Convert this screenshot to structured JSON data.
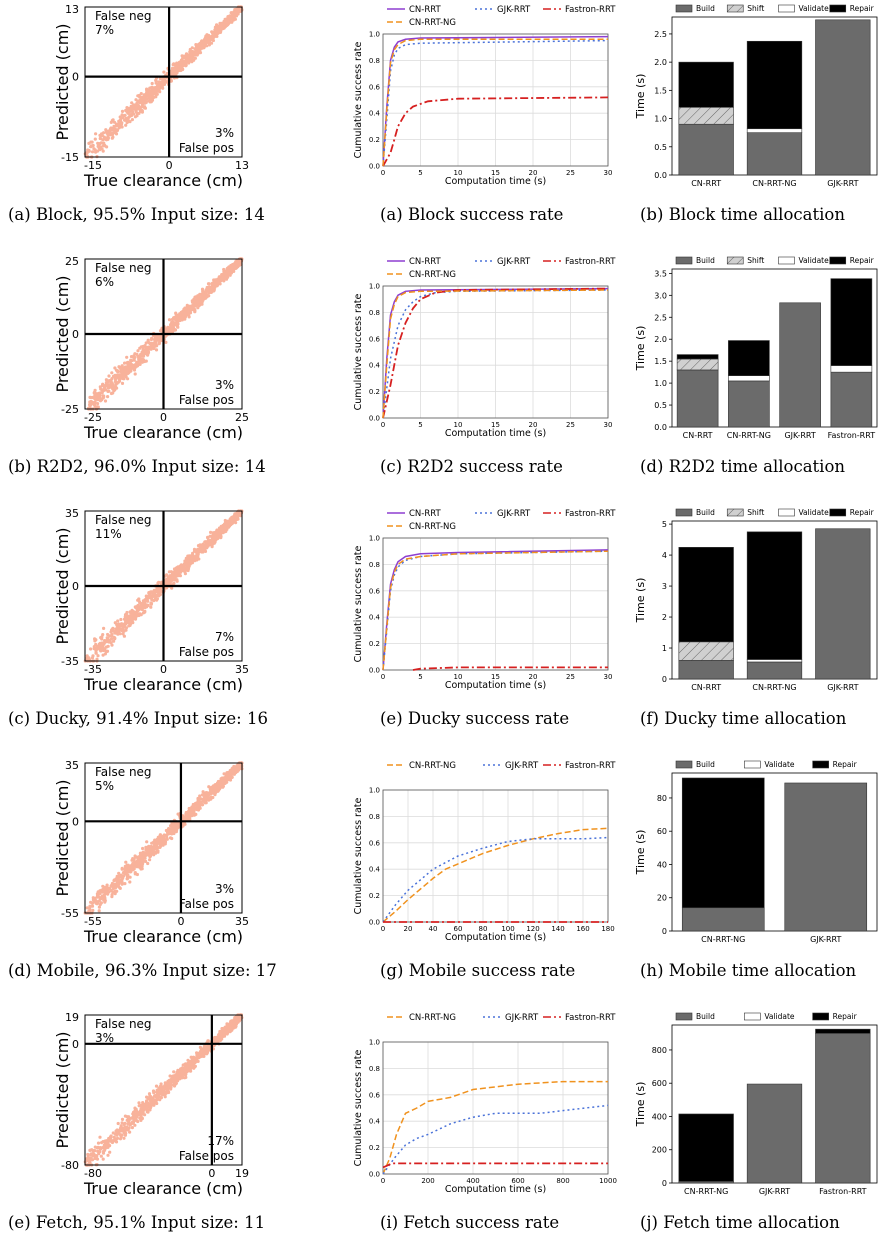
{
  "rows": [
    {
      "scatter": {
        "corner_max": "13",
        "corner_min": "-15",
        "x_max": "13",
        "x_min": "-15",
        "false_neg": "False neg",
        "false_neg_pct": "7%",
        "false_pos": "False pos",
        "false_pos_pct": "3%",
        "ylabel": "Predicted (cm)",
        "xlabel": "True clearance (cm)",
        "caption_letter": "(a)",
        "caption_text": "Block, 95.5% Input size: 14"
      },
      "success": {
        "caption_letter": "(a)",
        "caption_text": "Block success rate"
      },
      "time": {
        "caption_letter": "(b)",
        "caption_text": "Block time allocation"
      }
    },
    {
      "scatter": {
        "corner_max": "25",
        "corner_min": "-25",
        "x_max": "25",
        "x_min": "-25",
        "false_neg": "False neg",
        "false_neg_pct": "6%",
        "false_pos": "False pos",
        "false_pos_pct": "3%",
        "ylabel": "Predicted (cm)",
        "xlabel": "True clearance (cm)",
        "caption_letter": "(b)",
        "caption_text": "R2D2, 96.0% Input size: 14"
      },
      "success": {
        "caption_letter": "(c)",
        "caption_text": "R2D2 success rate"
      },
      "time": {
        "caption_letter": "(d)",
        "caption_text": "R2D2 time allocation"
      }
    },
    {
      "scatter": {
        "corner_max": "35",
        "corner_min": "-35",
        "x_max": "35",
        "x_min": "-35",
        "false_neg": "False neg",
        "false_neg_pct": "11%",
        "false_pos": "False pos",
        "false_pos_pct": "7%",
        "ylabel": "Predicted (cm)",
        "xlabel": "True clearance (cm)",
        "caption_letter": "(c)",
        "caption_text": "Ducky, 91.4% Input size: 16"
      },
      "success": {
        "caption_letter": "(e)",
        "caption_text": "Ducky success rate"
      },
      "time": {
        "caption_letter": "(f)",
        "caption_text": "Ducky time allocation"
      }
    },
    {
      "scatter": {
        "corner_max": "35",
        "corner_min": "-55",
        "x_max": "35",
        "x_min": "-55",
        "false_neg": "False neg",
        "false_neg_pct": "5%",
        "false_pos": "False pos",
        "false_pos_pct": "3%",
        "ylabel": "Predicted (cm)",
        "xlabel": "True clearance (cm)",
        "caption_letter": "(d)",
        "caption_text": "Mobile, 96.3% Input size: 17"
      },
      "success": {
        "caption_letter": "(g)",
        "caption_text": "Mobile success rate"
      },
      "time": {
        "caption_letter": "(h)",
        "caption_text": "Mobile time allocation"
      }
    },
    {
      "scatter": {
        "corner_max": "19",
        "corner_min": "-80",
        "x_max": "19",
        "x_min": "-80",
        "false_neg": "False neg",
        "false_neg_pct": "3%",
        "false_pos": "False pos",
        "false_pos_pct": "17%",
        "ylabel": "Predicted (cm)",
        "xlabel": "True clearance (cm)",
        "caption_letter": "(e)",
        "caption_text": "Fetch, 95.1% Input size: 11"
      },
      "success": {
        "caption_letter": "(i)",
        "caption_text": "Fetch success rate"
      },
      "time": {
        "caption_letter": "(j)",
        "caption_text": "Fetch time allocation"
      }
    }
  ],
  "colors": {
    "CN-RRT": "#8e3fd0",
    "GJK-RRT": "#4a72d9",
    "Fastron-RRT": "#d62020",
    "CN-RRT-NG": "#f0921e",
    "Build": "#6b6b6b",
    "Shift": "#d0d0d0",
    "Validate": "#ffffff",
    "Repair": "#000000",
    "scatter": "#f4754a"
  },
  "chart_data": [
    {
      "type": "scatter",
      "title": "",
      "xlabel": "True clearance (cm)",
      "ylabel": "Predicted (cm)",
      "xlim": [
        -15,
        13
      ],
      "ylim": [
        -15,
        13
      ],
      "annotations": [
        "False neg 7%",
        "3% False pos"
      ]
    },
    {
      "type": "line",
      "title": "",
      "xlabel": "Computation time (s)",
      "ylabel": "Cumulative success rate",
      "xlim": [
        0,
        30
      ],
      "ylim": [
        0,
        1.0
      ],
      "x_ticks": [
        "0",
        "5",
        "10",
        "15",
        "20",
        "25",
        "30"
      ],
      "y_ticks": [
        "0.0",
        "0.2",
        "0.4",
        "0.6",
        "0.8",
        "1.0"
      ],
      "legend": [
        "CN-RRT",
        "GJK-RRT",
        "Fastron-RRT",
        "CN-RRT-NG"
      ],
      "grid": true,
      "series": [
        {
          "name": "CN-RRT",
          "x": [
            0,
            0.5,
            1,
            1.5,
            2,
            3,
            5,
            30
          ],
          "y": [
            0,
            0.45,
            0.8,
            0.9,
            0.94,
            0.96,
            0.97,
            0.98
          ]
        },
        {
          "name": "GJK-RRT",
          "x": [
            0,
            0.5,
            1,
            1.5,
            2,
            3,
            5,
            30
          ],
          "y": [
            0,
            0.35,
            0.72,
            0.84,
            0.89,
            0.92,
            0.93,
            0.95
          ]
        },
        {
          "name": "Fastron-RRT",
          "x": [
            0,
            1,
            1.5,
            2,
            3,
            4,
            6,
            10,
            30
          ],
          "y": [
            0,
            0.1,
            0.2,
            0.3,
            0.4,
            0.45,
            0.49,
            0.51,
            0.52
          ]
        },
        {
          "name": "CN-RRT-NG",
          "x": [
            0,
            0.5,
            1,
            1.5,
            2,
            3,
            5,
            30
          ],
          "y": [
            0,
            0.42,
            0.78,
            0.88,
            0.92,
            0.95,
            0.96,
            0.96
          ]
        }
      ]
    },
    {
      "type": "bar",
      "title": "",
      "ylabel": "Time (s)",
      "categories": [
        "CN-RRT",
        "CN-RRT-NG",
        "GJK-RRT"
      ],
      "ylim": [
        0,
        2.8
      ],
      "y_ticks": [
        "0.0",
        "0.5",
        "1.0",
        "1.5",
        "2.0",
        "2.5"
      ],
      "legend": [
        "Build",
        "Shift",
        "Validate",
        "Repair"
      ],
      "series": [
        {
          "name": "Build",
          "values": [
            0.9,
            0.75,
            2.75
          ]
        },
        {
          "name": "Shift",
          "values": [
            0.3,
            0,
            0
          ]
        },
        {
          "name": "Validate",
          "values": [
            0.0,
            0.07,
            0
          ]
        },
        {
          "name": "Repair",
          "values": [
            0.8,
            1.55,
            0
          ]
        }
      ]
    },
    {
      "type": "scatter",
      "title": "",
      "xlabel": "True clearance (cm)",
      "ylabel": "Predicted (cm)",
      "xlim": [
        -25,
        25
      ],
      "ylim": [
        -25,
        25
      ],
      "annotations": [
        "False neg 6%",
        "3% False pos"
      ]
    },
    {
      "type": "line",
      "title": "",
      "xlabel": "Computation time (s)",
      "ylabel": "Cumulative success rate",
      "xlim": [
        0,
        30
      ],
      "ylim": [
        0,
        1.0
      ],
      "x_ticks": [
        "0",
        "5",
        "10",
        "15",
        "20",
        "25",
        "30"
      ],
      "y_ticks": [
        "0.0",
        "0.2",
        "0.4",
        "0.6",
        "0.8",
        "1.0"
      ],
      "legend": [
        "CN-RRT",
        "GJK-RRT",
        "Fastron-RRT",
        "CN-RRT-NG"
      ],
      "grid": true,
      "series": [
        {
          "name": "CN-RRT",
          "x": [
            0,
            0.5,
            1,
            1.5,
            2,
            3,
            5,
            30
          ],
          "y": [
            0,
            0.45,
            0.78,
            0.88,
            0.93,
            0.96,
            0.97,
            0.98
          ]
        },
        {
          "name": "GJK-RRT",
          "x": [
            0,
            1,
            2,
            3,
            4,
            5,
            7,
            10,
            30
          ],
          "y": [
            0,
            0.45,
            0.7,
            0.82,
            0.88,
            0.92,
            0.95,
            0.96,
            0.97
          ]
        },
        {
          "name": "Fastron-RRT",
          "x": [
            0,
            1,
            2,
            3,
            4,
            5,
            7,
            10,
            30
          ],
          "y": [
            0,
            0.25,
            0.55,
            0.72,
            0.83,
            0.9,
            0.95,
            0.97,
            0.98
          ]
        },
        {
          "name": "CN-RRT-NG",
          "x": [
            0,
            0.5,
            1,
            1.5,
            2,
            3,
            5,
            30
          ],
          "y": [
            0,
            0.4,
            0.75,
            0.86,
            0.92,
            0.95,
            0.96,
            0.97
          ]
        }
      ]
    },
    {
      "type": "bar",
      "title": "",
      "ylabel": "Time (s)",
      "categories": [
        "CN-RRT",
        "CN-RRT-NG",
        "GJK-RRT",
        "Fastron-RRT"
      ],
      "ylim": [
        0,
        3.6
      ],
      "y_ticks": [
        "0.0",
        "0.5",
        "1.0",
        "1.5",
        "2.0",
        "2.5",
        "3.0",
        "3.5"
      ],
      "legend": [
        "Build",
        "Shift",
        "Validate",
        "Repair"
      ],
      "series": [
        {
          "name": "Build",
          "values": [
            1.3,
            1.05,
            2.83,
            1.25
          ]
        },
        {
          "name": "Shift",
          "values": [
            0.25,
            0,
            0,
            0
          ]
        },
        {
          "name": "Validate",
          "values": [
            0.0,
            0.12,
            0,
            0.15
          ]
        },
        {
          "name": "Repair",
          "values": [
            0.1,
            0.8,
            0,
            1.98
          ]
        }
      ]
    },
    {
      "type": "scatter",
      "title": "",
      "xlabel": "True clearance (cm)",
      "ylabel": "Predicted (cm)",
      "xlim": [
        -35,
        35
      ],
      "ylim": [
        -35,
        35
      ],
      "annotations": [
        "False neg 11%",
        "7% False pos"
      ]
    },
    {
      "type": "line",
      "title": "",
      "xlabel": "Computation time (s)",
      "ylabel": "Cumulative success rate",
      "xlim": [
        0,
        30
      ],
      "ylim": [
        0,
        1.0
      ],
      "x_ticks": [
        "0",
        "5",
        "10",
        "15",
        "20",
        "25",
        "30"
      ],
      "y_ticks": [
        "0.0",
        "0.2",
        "0.4",
        "0.6",
        "0.8",
        "1.0"
      ],
      "legend": [
        "CN-RRT",
        "GJK-RRT",
        "Fastron-RRT",
        "CN-RRT-NG"
      ],
      "grid": true,
      "series": [
        {
          "name": "CN-RRT",
          "x": [
            0,
            0.5,
            1,
            1.5,
            2,
            3,
            5,
            10,
            30
          ],
          "y": [
            0,
            0.35,
            0.65,
            0.76,
            0.82,
            0.86,
            0.88,
            0.89,
            0.91
          ]
        },
        {
          "name": "GJK-RRT",
          "x": [
            0,
            0.5,
            1,
            1.5,
            2,
            3,
            5,
            10,
            30
          ],
          "y": [
            0,
            0.3,
            0.6,
            0.72,
            0.78,
            0.83,
            0.86,
            0.88,
            0.9
          ]
        },
        {
          "name": "Fastron-RRT",
          "x": [
            4,
            5,
            10,
            30
          ],
          "y": [
            0.0,
            0.01,
            0.02,
            0.02
          ]
        },
        {
          "name": "CN-RRT-NG",
          "x": [
            0,
            0.5,
            1,
            1.5,
            2,
            3,
            5,
            10,
            30
          ],
          "y": [
            0,
            0.32,
            0.62,
            0.74,
            0.8,
            0.84,
            0.86,
            0.88,
            0.9
          ]
        }
      ]
    },
    {
      "type": "bar",
      "title": "",
      "ylabel": "Time (s)",
      "categories": [
        "CN-RRT",
        "CN-RRT-NG",
        "GJK-RRT"
      ],
      "ylim": [
        0,
        5.1
      ],
      "y_ticks": [
        "0",
        "1",
        "2",
        "3",
        "4",
        "5"
      ],
      "legend": [
        "Build",
        "Shift",
        "Validate",
        "Repair"
      ],
      "series": [
        {
          "name": "Build",
          "values": [
            0.6,
            0.55,
            4.85
          ]
        },
        {
          "name": "Shift",
          "values": [
            0.6,
            0,
            0
          ]
        },
        {
          "name": "Validate",
          "values": [
            0.0,
            0.08,
            0
          ]
        },
        {
          "name": "Repair",
          "values": [
            3.05,
            4.12,
            0
          ]
        }
      ]
    },
    {
      "type": "scatter",
      "title": "",
      "xlabel": "True clearance (cm)",
      "ylabel": "Predicted (cm)",
      "xlim": [
        -55,
        35
      ],
      "ylim": [
        -55,
        35
      ],
      "annotations": [
        "False neg 5%",
        "3% False pos"
      ]
    },
    {
      "type": "line",
      "title": "",
      "xlabel": "Computation time (s)",
      "ylabel": "Cumulative success rate",
      "xlim": [
        0,
        180
      ],
      "ylim": [
        0,
        1.0
      ],
      "x_ticks": [
        "0",
        "20",
        "40",
        "60",
        "80",
        "100",
        "120",
        "140",
        "160",
        "180"
      ],
      "y_ticks": [
        "0.0",
        "0.2",
        "0.4",
        "0.6",
        "0.8",
        "1.0"
      ],
      "legend": [
        "CN-RRT-NG",
        "GJK-RRT",
        "Fastron-RRT"
      ],
      "grid": true,
      "series": [
        {
          "name": "CN-RRT-NG",
          "x": [
            0,
            10,
            20,
            30,
            40,
            50,
            60,
            80,
            100,
            120,
            140,
            160,
            180
          ],
          "y": [
            0,
            0.08,
            0.17,
            0.25,
            0.33,
            0.4,
            0.44,
            0.52,
            0.58,
            0.63,
            0.67,
            0.7,
            0.71
          ]
        },
        {
          "name": "GJK-RRT",
          "x": [
            0,
            10,
            20,
            30,
            40,
            50,
            60,
            80,
            100,
            120,
            140,
            160,
            180
          ],
          "y": [
            0,
            0.13,
            0.24,
            0.32,
            0.4,
            0.45,
            0.5,
            0.56,
            0.61,
            0.63,
            0.63,
            0.63,
            0.64
          ]
        },
        {
          "name": "Fastron-RRT",
          "x": [
            0,
            180
          ],
          "y": [
            0.0,
            0.0
          ]
        }
      ]
    },
    {
      "type": "bar",
      "title": "",
      "ylabel": "Time (s)",
      "categories": [
        "CN-RRT-NG",
        "GJK-RRT"
      ],
      "ylim": [
        0,
        95
      ],
      "y_ticks": [
        "0",
        "20",
        "40",
        "60",
        "80"
      ],
      "legend": [
        "Build",
        "Validate",
        "Repair"
      ],
      "series": [
        {
          "name": "Build",
          "values": [
            14,
            89
          ]
        },
        {
          "name": "Validate",
          "values": [
            0,
            0
          ]
        },
        {
          "name": "Repair",
          "values": [
            78,
            0
          ]
        }
      ]
    },
    {
      "type": "scatter",
      "title": "",
      "xlabel": "True clearance (cm)",
      "ylabel": "Predicted (cm)",
      "xlim": [
        -80,
        19
      ],
      "ylim": [
        -80,
        19
      ],
      "annotations": [
        "False neg 3%",
        "17% False pos"
      ]
    },
    {
      "type": "line",
      "title": "",
      "xlabel": "Computation time (s)",
      "ylabel": "Cumulative success rate",
      "xlim": [
        0,
        1000
      ],
      "ylim": [
        0,
        1.0
      ],
      "x_ticks": [
        "0",
        "200",
        "400",
        "600",
        "800",
        "1000"
      ],
      "y_ticks": [
        "0.0",
        "0.2",
        "0.4",
        "0.6",
        "0.8",
        "1.0"
      ],
      "legend": [
        "CN-RRT-NG",
        "GJK-RRT",
        "Fastron-RRT"
      ],
      "grid": true,
      "series": [
        {
          "name": "CN-RRT-NG",
          "x": [
            0,
            30,
            60,
            100,
            150,
            200,
            300,
            400,
            500,
            600,
            800,
            1000
          ],
          "y": [
            0,
            0.12,
            0.3,
            0.46,
            0.5,
            0.55,
            0.58,
            0.64,
            0.66,
            0.68,
            0.7,
            0.7
          ]
        },
        {
          "name": "GJK-RRT",
          "x": [
            0,
            50,
            100,
            150,
            200,
            300,
            400,
            500,
            700,
            800,
            900,
            1000
          ],
          "y": [
            0,
            0.12,
            0.22,
            0.27,
            0.3,
            0.38,
            0.43,
            0.46,
            0.46,
            0.48,
            0.5,
            0.52
          ]
        },
        {
          "name": "Fastron-RRT",
          "x": [
            0,
            40,
            1000
          ],
          "y": [
            0.05,
            0.08,
            0.08
          ]
        }
      ]
    },
    {
      "type": "bar",
      "title": "",
      "ylabel": "Time (s)",
      "categories": [
        "CN-RRT-NG",
        "GJK-RRT",
        "Fastron-RRT"
      ],
      "ylim": [
        0,
        950
      ],
      "y_ticks": [
        "0",
        "200",
        "400",
        "600",
        "800"
      ],
      "legend": [
        "Build",
        "Validate",
        "Repair"
      ],
      "series": [
        {
          "name": "Build",
          "values": [
            10,
            595,
            900
          ]
        },
        {
          "name": "Validate",
          "values": [
            0,
            0,
            0
          ]
        },
        {
          "name": "Repair",
          "values": [
            405,
            0,
            25
          ]
        }
      ]
    }
  ]
}
